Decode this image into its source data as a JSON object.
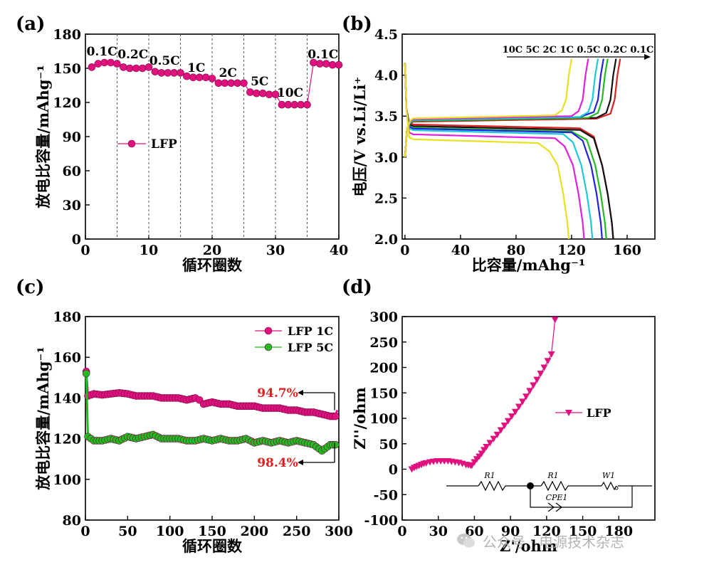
{
  "panels": {
    "a": {
      "letter": "(a)"
    },
    "b": {
      "letter": "(b)"
    },
    "c": {
      "letter": "(c)"
    },
    "d": {
      "letter": "(d)"
    }
  },
  "watermark": {
    "text": "公众号 · 电源技术杂志",
    "icon": "wechat-logo-icon"
  },
  "chart_data": [
    {
      "panel": "a",
      "type": "scatter",
      "xlabel": "循环圈数",
      "ylabel": "放电比容量/mAhg⁻¹",
      "xlim": [
        0,
        40
      ],
      "ylim": [
        0,
        180
      ],
      "xticks": [
        0,
        10,
        20,
        30,
        40
      ],
      "yticks": [
        0,
        30,
        60,
        90,
        120,
        150,
        180
      ],
      "segment_dividers": [
        5,
        10,
        15,
        20,
        25,
        30,
        35
      ],
      "rate_labels": [
        "0.1C",
        "0.2C",
        "0.5C",
        "1C",
        "2C",
        "5C",
        "10C",
        "0.1C"
      ],
      "legend": "left-middle",
      "series": [
        {
          "name": "LFP",
          "color": "#e0117f",
          "marker": "circle",
          "x": [
            1,
            2,
            3,
            4,
            5,
            6,
            7,
            8,
            9,
            10,
            11,
            12,
            13,
            14,
            15,
            16,
            17,
            18,
            19,
            20,
            21,
            22,
            23,
            24,
            25,
            26,
            27,
            28,
            29,
            30,
            31,
            32,
            33,
            34,
            35,
            36,
            37,
            38,
            39,
            40
          ],
          "y": [
            151,
            154,
            155,
            155,
            154,
            151,
            150,
            150,
            150,
            151,
            147,
            146,
            146,
            146,
            146,
            143,
            142,
            142,
            142,
            141,
            137,
            137,
            137,
            137,
            137,
            129,
            128,
            128,
            127,
            127,
            118,
            118,
            118,
            118,
            118,
            155,
            154,
            154,
            153,
            153
          ]
        }
      ]
    },
    {
      "panel": "b",
      "type": "line",
      "xlabel": "比容量/mAhg⁻¹",
      "ylabel": "电压/V vs.Li/Li⁺",
      "xlim": [
        -2,
        180
      ],
      "ylim": [
        2.0,
        4.5
      ],
      "xticks": [
        0,
        40,
        80,
        120,
        160
      ],
      "yticks": [
        2.0,
        2.5,
        3.0,
        3.5,
        4.0,
        4.5
      ],
      "arrow_labels": "10C 5C 2C 1C 0.5C 0.2C 0.1C",
      "series": [
        {
          "name": "0.1C",
          "color": "#e02020",
          "charge_end": 155,
          "charge_plateau": 3.43,
          "discharge_end": 150,
          "discharge_plateau": 3.4
        },
        {
          "name": "0.2C",
          "color": "#111111",
          "charge_end": 152,
          "charge_plateau": 3.44,
          "discharge_end": 150,
          "discharge_plateau": 3.38
        },
        {
          "name": "0.5C",
          "color": "#22bb22",
          "charge_end": 146,
          "charge_plateau": 3.44,
          "discharge_end": 145,
          "discharge_plateau": 3.36
        },
        {
          "name": "1C",
          "color": "#2323e0",
          "charge_end": 143,
          "charge_plateau": 3.45,
          "discharge_end": 142,
          "discharge_plateau": 3.35
        },
        {
          "name": "2C",
          "color": "#1fc8d8",
          "charge_end": 139,
          "charge_plateau": 3.45,
          "discharge_end": 135,
          "discharge_plateau": 3.33
        },
        {
          "name": "5C",
          "color": "#e020e0",
          "charge_end": 132,
          "charge_plateau": 3.46,
          "discharge_end": 129,
          "discharge_plateau": 3.28
        },
        {
          "name": "10C",
          "color": "#e8e020",
          "charge_end": 120,
          "charge_plateau": 3.47,
          "discharge_end": 118,
          "discharge_plateau": 3.22
        }
      ]
    },
    {
      "panel": "c",
      "type": "scatter",
      "xlabel": "循环圈数",
      "ylabel": "放电比容量/mAhg⁻¹",
      "xlim": [
        0,
        300
      ],
      "ylim": [
        80,
        180
      ],
      "xticks": [
        0,
        50,
        100,
        150,
        200,
        250,
        300
      ],
      "yticks": [
        80,
        100,
        120,
        140,
        160,
        180
      ],
      "legend": "top-right",
      "annotations": [
        {
          "text": "94.7%",
          "color": "#e02020",
          "target_y": 141
        },
        {
          "text": "98.4%",
          "color": "#e02020",
          "target_y": 118
        }
      ],
      "series": [
        {
          "name": "LFP 1C",
          "color": "#e0117f",
          "marker": "circle",
          "x": [
            1,
            3,
            10,
            20,
            30,
            40,
            50,
            60,
            70,
            80,
            90,
            100,
            110,
            120,
            130,
            135,
            140,
            150,
            160,
            170,
            180,
            190,
            200,
            210,
            220,
            230,
            240,
            250,
            260,
            270,
            280,
            290,
            296,
            298
          ],
          "y": [
            153,
            141,
            142,
            141.5,
            142,
            142.5,
            142,
            141,
            141,
            141,
            140,
            140,
            140,
            139,
            140,
            139,
            137,
            138,
            137,
            137,
            136,
            136,
            136,
            135,
            135,
            135,
            134,
            134,
            133,
            133,
            132,
            131,
            131,
            134
          ]
        },
        {
          "name": "LFP 5C",
          "color": "#22bb22",
          "marker": "circle",
          "x": [
            1,
            3,
            10,
            20,
            30,
            40,
            50,
            60,
            70,
            80,
            90,
            100,
            110,
            120,
            130,
            140,
            150,
            160,
            170,
            180,
            190,
            200,
            210,
            220,
            230,
            240,
            250,
            260,
            270,
            280,
            290,
            296,
            298
          ],
          "y": [
            152,
            121,
            119,
            119,
            120,
            119,
            121,
            120,
            121,
            122,
            120,
            120,
            120,
            119,
            119,
            120,
            119,
            120,
            119,
            119,
            120,
            118,
            119,
            118,
            119,
            118,
            119,
            118,
            117,
            114,
            117,
            117,
            118
          ]
        }
      ]
    },
    {
      "panel": "d",
      "type": "line",
      "xlabel": "Z'/ohm",
      "ylabel": "Z''/ohm",
      "xlim": [
        0,
        210
      ],
      "ylim": [
        -100,
        300
      ],
      "xticks": [
        0,
        30,
        60,
        90,
        120,
        150,
        180
      ],
      "yticks": [
        -100,
        -50,
        0,
        50,
        100,
        150,
        200,
        250,
        300
      ],
      "legend": "middle-right",
      "circuit_labels": [
        "R1",
        "R1",
        "W1",
        "CPE1"
      ],
      "series": [
        {
          "name": "LFP",
          "color": "#e0117f",
          "marker": "triangle-down",
          "x": [
            8,
            10,
            12,
            14,
            16,
            18,
            20,
            23,
            26,
            29,
            32,
            35,
            38,
            41,
            44,
            47,
            50,
            53,
            55,
            57,
            58,
            60,
            62,
            64,
            66,
            68,
            70,
            73,
            76,
            79,
            82,
            85,
            88,
            91,
            94,
            97,
            100,
            103,
            106,
            109,
            112,
            115,
            118,
            121,
            124,
            127
          ],
          "y": [
            0,
            3,
            5,
            7,
            9,
            11,
            12,
            14,
            15,
            16,
            16,
            16,
            16,
            15,
            14,
            13,
            11,
            9,
            8,
            7,
            8,
            14,
            20,
            25,
            31,
            38,
            44,
            52,
            60,
            68,
            77,
            86,
            95,
            104,
            113,
            123,
            133,
            143,
            154,
            165,
            176,
            188,
            200,
            213,
            226,
            294
          ]
        }
      ]
    }
  ]
}
